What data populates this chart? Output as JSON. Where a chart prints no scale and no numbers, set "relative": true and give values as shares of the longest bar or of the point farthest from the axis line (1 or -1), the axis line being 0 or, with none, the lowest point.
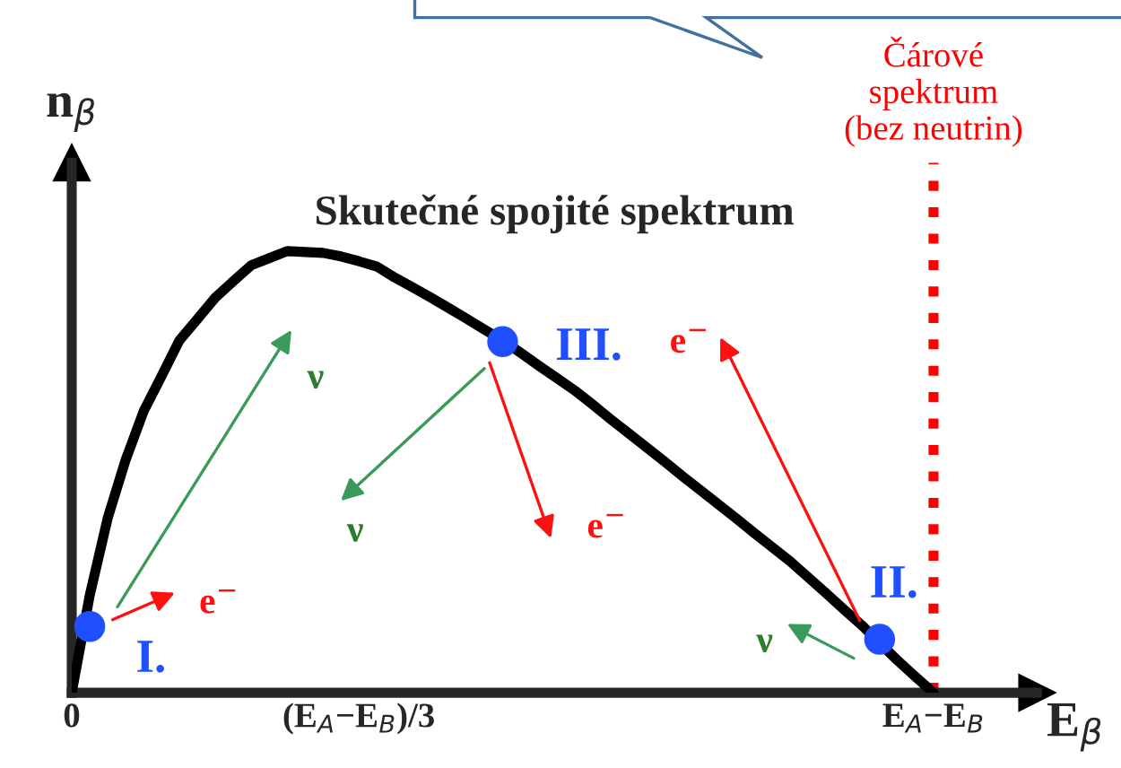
{
  "chart_data": {
    "type": "line",
    "relative": true,
    "title": "Skutečné spojité spektrum",
    "xlabel": "E$_{β}$",
    "ylabel": "n$_{β}$",
    "categories": [
      "0",
      null,
      null,
      null,
      null,
      null,
      null,
      null,
      null,
      null,
      null,
      null,
      null,
      null,
      null,
      null,
      "(E$_{A}$−E$_{B}$)/3",
      null,
      null,
      null,
      null,
      null,
      null,
      null,
      null,
      null,
      null,
      null,
      null,
      null,
      null,
      null,
      null,
      null,
      null,
      null,
      null,
      null,
      null,
      null,
      null,
      null,
      null,
      null,
      null,
      null,
      null,
      null,
      "E$_{A}$−E$_{B}$"
    ],
    "series": [
      {
        "color": "#000000",
        "values": [
          0,
          0.22,
          0.395,
          0.527,
          0.637,
          0.717,
          0.798,
          0.846,
          0.895,
          0.932,
          0.968,
          0.984,
          1.0,
          0.998,
          0.996,
          0.988,
          0.977,
          0.965,
          0.94,
          0.918,
          0.895,
          0.871,
          0.847,
          0.822,
          0.798,
          0.77,
          0.741,
          0.713,
          0.685,
          0.653,
          0.62,
          0.588,
          0.556,
          0.524,
          0.491,
          0.459,
          0.427,
          0.395,
          0.362,
          0.33,
          0.298,
          0.262,
          0.226,
          0.189,
          0.153,
          0.113,
          0.073,
          0.036,
          0
        ]
      },
      {
        "type": "scatter",
        "color": "#1f4fff",
        "marker": "circle",
        "values": [
          null,
          0.15,
          null,
          null,
          null,
          null,
          null,
          null,
          null,
          null,
          null,
          null,
          null,
          null,
          null,
          null,
          null,
          null,
          null,
          null,
          null,
          null,
          null,
          null,
          0.795,
          null,
          null,
          null,
          null,
          null,
          null,
          null,
          null,
          null,
          null,
          null,
          null,
          null,
          null,
          null,
          null,
          null,
          null,
          null,
          null,
          0.121,
          null,
          null,
          null
        ]
      }
    ],
    "ref_lines": [
      {
        "axis": "x",
        "value": "E$_{A}$−E$_{B}$",
        "label": "Čárové\nspektrum\n(bez neutrin)",
        "color": "#ff0000",
        "line_style": "dotted"
      }
    ],
    "annotations": [
      "I.",
      "III.",
      "II.",
      "e$^{−}$",
      "ν",
      "ν",
      "e$^{−}$",
      "e$^{−}$",
      "ν"
    ]
  }
}
